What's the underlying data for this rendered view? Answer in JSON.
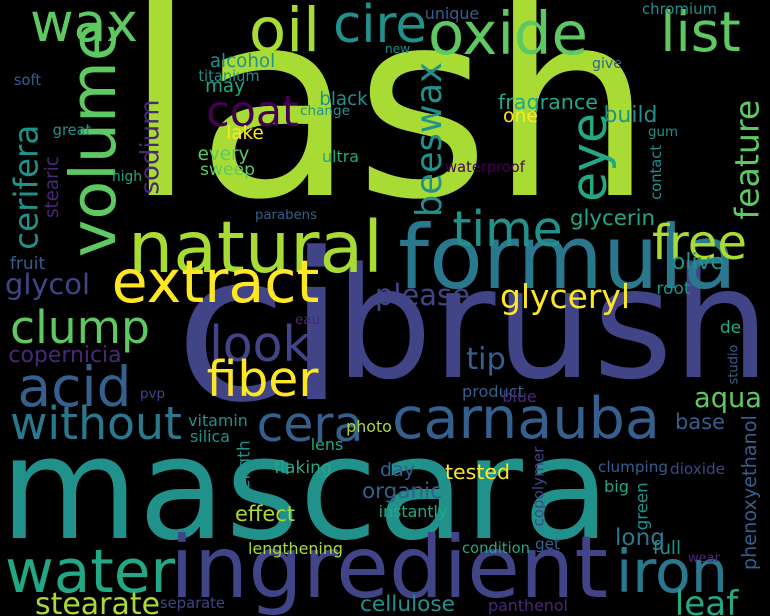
{
  "background": "#000000",
  "palette": {
    "lime": "#a8db34",
    "green": "#5ec962",
    "teal_green": "#22a884",
    "teal": "#21918c",
    "blue_teal": "#2a788e",
    "blue": "#355f8d",
    "indigo": "#414487",
    "purple": "#482878",
    "dark_purple": "#440154",
    "yellow": "#fde725"
  },
  "words": [
    {
      "text": "lash",
      "color": "lime"
    },
    {
      "text": "ci",
      "color": "indigo"
    },
    {
      "text": "mascara",
      "color": "teal"
    },
    {
      "text": "brush",
      "color": "indigo"
    },
    {
      "text": "ingredient",
      "color": "indigo"
    },
    {
      "text": "formula",
      "color": "blue_teal"
    },
    {
      "text": "carnauba",
      "color": "blue"
    },
    {
      "text": "volume",
      "color": "green"
    },
    {
      "text": "oxide",
      "color": "green"
    },
    {
      "text": "natural",
      "color": "lime"
    },
    {
      "text": "extract",
      "color": "yellow"
    },
    {
      "text": "water",
      "color": "teal_green"
    },
    {
      "text": "iron",
      "color": "blue_teal"
    },
    {
      "text": "oil",
      "color": "lime"
    },
    {
      "text": "wax",
      "color": "green"
    },
    {
      "text": "list",
      "color": "green"
    },
    {
      "text": "cire",
      "color": "teal"
    },
    {
      "text": "free",
      "color": "lime"
    },
    {
      "text": "clump",
      "color": "green"
    },
    {
      "text": "acid",
      "color": "blue"
    },
    {
      "text": "time",
      "color": "teal"
    },
    {
      "text": "cera",
      "color": "blue"
    },
    {
      "text": "without",
      "color": "blue_teal"
    },
    {
      "text": "look",
      "color": "indigo"
    },
    {
      "text": "fiber",
      "color": "yellow"
    },
    {
      "text": "coat",
      "color": "dark_purple"
    },
    {
      "text": "eye",
      "color": "teal_green"
    },
    {
      "text": "feature",
      "color": "green"
    },
    {
      "text": "beeswax",
      "color": "teal"
    },
    {
      "text": "cerifera",
      "color": "teal"
    },
    {
      "text": "sodium",
      "color": "purple"
    },
    {
      "text": "stearate",
      "color": "lime"
    },
    {
      "text": "glyceryl",
      "color": "yellow"
    },
    {
      "text": "aqua",
      "color": "green"
    },
    {
      "text": "leaf",
      "color": "teal_green"
    },
    {
      "text": "please",
      "color": "indigo"
    },
    {
      "text": "tip",
      "color": "blue"
    },
    {
      "text": "glycol",
      "color": "indigo"
    },
    {
      "text": "copernicia",
      "color": "purple"
    },
    {
      "text": "base",
      "color": "blue"
    },
    {
      "text": "phenoxyethanol",
      "color": "blue"
    },
    {
      "text": "cellulose",
      "color": "teal"
    },
    {
      "text": "panthenol",
      "color": "purple"
    },
    {
      "text": "organic",
      "color": "blue"
    },
    {
      "text": "tested",
      "color": "yellow"
    },
    {
      "text": "day",
      "color": "blue"
    },
    {
      "text": "long",
      "color": "blue_teal"
    },
    {
      "text": "glycerin",
      "color": "teal_green"
    },
    {
      "text": "olive",
      "color": "teal"
    },
    {
      "text": "fragrance",
      "color": "teal_green"
    },
    {
      "text": "one",
      "color": "yellow"
    },
    {
      "text": "build",
      "color": "teal"
    },
    {
      "text": "effect",
      "color": "lime"
    },
    {
      "text": "alcohol",
      "color": "teal"
    },
    {
      "text": "may",
      "color": "teal_green"
    },
    {
      "text": "black",
      "color": "teal"
    },
    {
      "text": "every",
      "color": "green"
    },
    {
      "text": "sweep",
      "color": "green"
    },
    {
      "text": "lake",
      "color": "yellow"
    },
    {
      "text": "unique",
      "color": "blue"
    },
    {
      "text": "chromium",
      "color": "teal"
    },
    {
      "text": "titanium",
      "color": "teal"
    },
    {
      "text": "change",
      "color": "teal"
    },
    {
      "text": "ultra",
      "color": "teal_green"
    },
    {
      "text": "waterproof",
      "color": "dark_purple"
    },
    {
      "text": "contact",
      "color": "teal"
    },
    {
      "text": "gum",
      "color": "teal"
    },
    {
      "text": "stearic",
      "color": "purple"
    },
    {
      "text": "high",
      "color": "teal_green"
    },
    {
      "text": "great",
      "color": "teal"
    },
    {
      "text": "soft",
      "color": "blue"
    },
    {
      "text": "new",
      "color": "teal"
    },
    {
      "text": "give",
      "color": "blue"
    },
    {
      "text": "parabens",
      "color": "blue"
    },
    {
      "text": "fruit",
      "color": "blue"
    },
    {
      "text": "root",
      "color": "teal"
    },
    {
      "text": "de",
      "color": "teal_green"
    },
    {
      "text": "eau",
      "color": "purple"
    },
    {
      "text": "studio",
      "color": "blue"
    },
    {
      "text": "product",
      "color": "blue"
    },
    {
      "text": "blue",
      "color": "purple"
    },
    {
      "text": "pvp",
      "color": "indigo"
    },
    {
      "text": "vitamin",
      "color": "teal"
    },
    {
      "text": "silica",
      "color": "teal"
    },
    {
      "text": "photo",
      "color": "lime"
    },
    {
      "text": "lens",
      "color": "teal_green"
    },
    {
      "text": "length",
      "color": "teal"
    },
    {
      "text": "flaking",
      "color": "teal_green"
    },
    {
      "text": "instantly",
      "color": "teal_green"
    },
    {
      "text": "copolymer",
      "color": "indigo"
    },
    {
      "text": "clumping",
      "color": "blue"
    },
    {
      "text": "dioxide",
      "color": "indigo"
    },
    {
      "text": "big",
      "color": "teal_green"
    },
    {
      "text": "green",
      "color": "teal"
    },
    {
      "text": "lengthening",
      "color": "lime"
    },
    {
      "text": "condition",
      "color": "teal_green"
    },
    {
      "text": "get",
      "color": "blue"
    },
    {
      "text": "full",
      "color": "teal"
    },
    {
      "text": "wear",
      "color": "purple"
    },
    {
      "text": "separate",
      "color": "indigo"
    }
  ]
}
